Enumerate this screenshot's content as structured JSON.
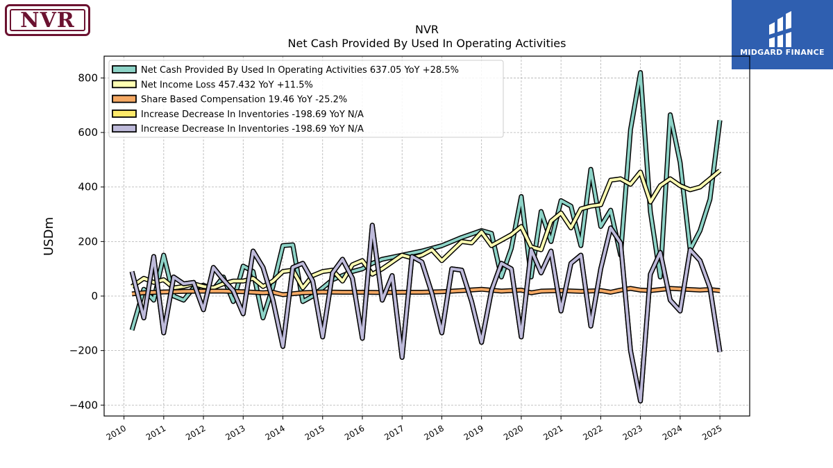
{
  "logos": {
    "left_text": "NVR",
    "right_text": "MIDGARD FINANCE",
    "left_color": "#6b1230",
    "right_bg": "#2f5fb0"
  },
  "chart_data": {
    "type": "line",
    "title": "NVR",
    "subtitle": "Net Cash Provided By Used In Operating Activities",
    "ylabel": "USDm",
    "xlabel": "",
    "ylim": [
      -440,
      880
    ],
    "xlim": [
      2009.5,
      2025.75
    ],
    "yticks": [
      -400,
      -200,
      0,
      200,
      400,
      600,
      800
    ],
    "ytick_labels": [
      "−400",
      "−200",
      "0",
      "200",
      "400",
      "600",
      "800"
    ],
    "xticks": [
      2010,
      2011,
      2012,
      2013,
      2014,
      2015,
      2016,
      2017,
      2018,
      2019,
      2020,
      2021,
      2022,
      2023,
      2024,
      2025
    ],
    "xtick_labels": [
      "2010",
      "2011",
      "2012",
      "2013",
      "2014",
      "2015",
      "2016",
      "2017",
      "2018",
      "2019",
      "2020",
      "2021",
      "2022",
      "2023",
      "2024",
      "2025"
    ],
    "grid": true,
    "legend_position": "top-left",
    "series": [
      {
        "name": "Net Cash Provided By Used In Operating Activities  637.05 YoY +28.5%",
        "color": "#8dd3c7",
        "points": [
          [
            2010.2,
            -125
          ],
          [
            2010.5,
            25
          ],
          [
            2010.75,
            -15
          ],
          [
            2011.0,
            150
          ],
          [
            2011.25,
            0
          ],
          [
            2011.5,
            -15
          ],
          [
            2011.75,
            30
          ],
          [
            2012.0,
            40
          ],
          [
            2012.25,
            25
          ],
          [
            2012.5,
            70
          ],
          [
            2012.75,
            -20
          ],
          [
            2013.0,
            110
          ],
          [
            2013.25,
            90
          ],
          [
            2013.5,
            -80
          ],
          [
            2013.75,
            35
          ],
          [
            2014.0,
            185
          ],
          [
            2014.25,
            188
          ],
          [
            2014.5,
            -20
          ],
          [
            2014.75,
            0
          ],
          [
            2015.0,
            30
          ],
          [
            2015.25,
            60
          ],
          [
            2015.5,
            75
          ],
          [
            2015.75,
            90
          ],
          [
            2016.0,
            100
          ],
          [
            2016.25,
            120
          ],
          [
            2016.5,
            135
          ],
          [
            2017.0,
            150
          ],
          [
            2017.5,
            165
          ],
          [
            2018.0,
            185
          ],
          [
            2018.5,
            215
          ],
          [
            2019.0,
            240
          ],
          [
            2019.25,
            230
          ],
          [
            2019.5,
            70
          ],
          [
            2019.75,
            175
          ],
          [
            2020.0,
            365
          ],
          [
            2020.25,
            70
          ],
          [
            2020.5,
            310
          ],
          [
            2020.75,
            200
          ],
          [
            2021.0,
            350
          ],
          [
            2021.25,
            330
          ],
          [
            2021.5,
            185
          ],
          [
            2021.75,
            465
          ],
          [
            2022.0,
            255
          ],
          [
            2022.25,
            315
          ],
          [
            2022.5,
            150
          ],
          [
            2022.75,
            610
          ],
          [
            2023.0,
            820
          ],
          [
            2023.25,
            310
          ],
          [
            2023.5,
            70
          ],
          [
            2023.75,
            665
          ],
          [
            2024.0,
            490
          ],
          [
            2024.25,
            170
          ],
          [
            2024.5,
            240
          ],
          [
            2024.75,
            355
          ],
          [
            2025.0,
            645
          ]
        ]
      },
      {
        "name": "Net Income Loss  457.432 YoY +11.5%",
        "color": "#ffffb3",
        "points": [
          [
            2010.2,
            35
          ],
          [
            2010.5,
            65
          ],
          [
            2010.75,
            50
          ],
          [
            2011.0,
            60
          ],
          [
            2011.25,
            30
          ],
          [
            2011.5,
            35
          ],
          [
            2011.75,
            45
          ],
          [
            2012.0,
            35
          ],
          [
            2012.25,
            30
          ],
          [
            2012.5,
            45
          ],
          [
            2012.75,
            55
          ],
          [
            2013.0,
            55
          ],
          [
            2013.25,
            65
          ],
          [
            2013.5,
            35
          ],
          [
            2013.75,
            55
          ],
          [
            2014.0,
            90
          ],
          [
            2014.25,
            95
          ],
          [
            2014.5,
            30
          ],
          [
            2014.75,
            75
          ],
          [
            2015.0,
            90
          ],
          [
            2015.25,
            95
          ],
          [
            2015.5,
            55
          ],
          [
            2015.75,
            115
          ],
          [
            2016.0,
            130
          ],
          [
            2016.25,
            80
          ],
          [
            2016.5,
            100
          ],
          [
            2016.75,
            125
          ],
          [
            2017.0,
            150
          ],
          [
            2017.25,
            140
          ],
          [
            2017.5,
            150
          ],
          [
            2017.75,
            170
          ],
          [
            2018.0,
            130
          ],
          [
            2018.25,
            165
          ],
          [
            2018.5,
            200
          ],
          [
            2018.75,
            195
          ],
          [
            2019.0,
            235
          ],
          [
            2019.25,
            185
          ],
          [
            2019.5,
            205
          ],
          [
            2019.75,
            225
          ],
          [
            2020.0,
            255
          ],
          [
            2020.25,
            180
          ],
          [
            2020.5,
            170
          ],
          [
            2020.75,
            275
          ],
          [
            2021.0,
            305
          ],
          [
            2021.25,
            250
          ],
          [
            2021.5,
            320
          ],
          [
            2021.75,
            330
          ],
          [
            2022.0,
            335
          ],
          [
            2022.25,
            425
          ],
          [
            2022.5,
            430
          ],
          [
            2022.75,
            410
          ],
          [
            2023.0,
            455
          ],
          [
            2023.25,
            345
          ],
          [
            2023.5,
            405
          ],
          [
            2023.75,
            430
          ],
          [
            2024.0,
            405
          ],
          [
            2024.25,
            390
          ],
          [
            2024.5,
            400
          ],
          [
            2024.75,
            430
          ],
          [
            2025.0,
            460
          ]
        ]
      },
      {
        "name": "Share Based Compensation  19.46 YoY -25.2%",
        "color": "#f5a964",
        "points": [
          [
            2010.2,
            8
          ],
          [
            2010.5,
            12
          ],
          [
            2011.0,
            15
          ],
          [
            2011.5,
            17
          ],
          [
            2012.0,
            18
          ],
          [
            2012.5,
            18
          ],
          [
            2013.0,
            16
          ],
          [
            2013.5,
            12
          ],
          [
            2013.75,
            14
          ],
          [
            2014.0,
            5
          ],
          [
            2014.5,
            12
          ],
          [
            2015.0,
            15
          ],
          [
            2015.5,
            14
          ],
          [
            2016.0,
            14
          ],
          [
            2016.5,
            13
          ],
          [
            2017.0,
            14
          ],
          [
            2017.5,
            14
          ],
          [
            2018.0,
            16
          ],
          [
            2018.5,
            20
          ],
          [
            2019.0,
            25
          ],
          [
            2019.5,
            18
          ],
          [
            2020.0,
            22
          ],
          [
            2020.25,
            12
          ],
          [
            2020.5,
            18
          ],
          [
            2021.0,
            20
          ],
          [
            2021.5,
            17
          ],
          [
            2022.0,
            20
          ],
          [
            2022.25,
            14
          ],
          [
            2022.5,
            22
          ],
          [
            2022.75,
            28
          ],
          [
            2023.0,
            22
          ],
          [
            2023.25,
            20
          ],
          [
            2023.5,
            24
          ],
          [
            2023.75,
            28
          ],
          [
            2024.0,
            26
          ],
          [
            2024.25,
            24
          ],
          [
            2024.5,
            22
          ],
          [
            2024.75,
            24
          ],
          [
            2025.0,
            20
          ]
        ]
      },
      {
        "name": "Increase Decrease In Inventories  -198.69 YoY N/A",
        "color": "#fde96a",
        "points": [
          [
            2010.2,
            90
          ],
          [
            2010.5,
            -80
          ],
          [
            2010.75,
            145
          ],
          [
            2011.0,
            -135
          ],
          [
            2011.25,
            70
          ],
          [
            2011.5,
            45
          ],
          [
            2011.75,
            50
          ],
          [
            2012.0,
            -50
          ],
          [
            2012.25,
            105
          ],
          [
            2012.5,
            60
          ],
          [
            2012.75,
            20
          ],
          [
            2013.0,
            -65
          ],
          [
            2013.25,
            165
          ],
          [
            2013.5,
            105
          ],
          [
            2013.75,
            -15
          ],
          [
            2014.0,
            -185
          ],
          [
            2014.25,
            105
          ],
          [
            2014.5,
            120
          ],
          [
            2014.75,
            55
          ],
          [
            2015.0,
            -150
          ],
          [
            2015.25,
            85
          ],
          [
            2015.5,
            135
          ],
          [
            2015.75,
            65
          ],
          [
            2016.0,
            -155
          ],
          [
            2016.25,
            260
          ],
          [
            2016.5,
            -15
          ],
          [
            2016.75,
            75
          ],
          [
            2017.0,
            -225
          ],
          [
            2017.25,
            145
          ],
          [
            2017.5,
            125
          ],
          [
            2017.75,
            10
          ],
          [
            2018.0,
            -135
          ],
          [
            2018.25,
            100
          ],
          [
            2018.5,
            95
          ],
          [
            2018.75,
            -20
          ],
          [
            2019.0,
            -170
          ],
          [
            2019.25,
            20
          ],
          [
            2019.5,
            120
          ],
          [
            2019.75,
            100
          ],
          [
            2020.0,
            -150
          ],
          [
            2020.25,
            170
          ],
          [
            2020.5,
            85
          ],
          [
            2020.75,
            165
          ],
          [
            2021.0,
            -55
          ],
          [
            2021.25,
            120
          ],
          [
            2021.5,
            150
          ],
          [
            2021.75,
            -110
          ],
          [
            2022.0,
            100
          ],
          [
            2022.25,
            250
          ],
          [
            2022.5,
            195
          ],
          [
            2022.75,
            -200
          ],
          [
            2023.0,
            -385
          ],
          [
            2023.25,
            80
          ],
          [
            2023.5,
            160
          ],
          [
            2023.75,
            -15
          ],
          [
            2024.0,
            -55
          ],
          [
            2024.25,
            170
          ],
          [
            2024.5,
            130
          ],
          [
            2024.75,
            30
          ],
          [
            2025.0,
            -205
          ]
        ]
      },
      {
        "name": "Increase Decrease In Inventories  -198.69 YoY N/A",
        "color": "#bebada",
        "points": [
          [
            2010.2,
            90
          ],
          [
            2010.5,
            -80
          ],
          [
            2010.75,
            145
          ],
          [
            2011.0,
            -135
          ],
          [
            2011.25,
            70
          ],
          [
            2011.5,
            45
          ],
          [
            2011.75,
            50
          ],
          [
            2012.0,
            -50
          ],
          [
            2012.25,
            105
          ],
          [
            2012.5,
            60
          ],
          [
            2012.75,
            20
          ],
          [
            2013.0,
            -65
          ],
          [
            2013.25,
            165
          ],
          [
            2013.5,
            105
          ],
          [
            2013.75,
            -15
          ],
          [
            2014.0,
            -185
          ],
          [
            2014.25,
            105
          ],
          [
            2014.5,
            120
          ],
          [
            2014.75,
            55
          ],
          [
            2015.0,
            -150
          ],
          [
            2015.25,
            85
          ],
          [
            2015.5,
            135
          ],
          [
            2015.75,
            65
          ],
          [
            2016.0,
            -155
          ],
          [
            2016.25,
            260
          ],
          [
            2016.5,
            -15
          ],
          [
            2016.75,
            75
          ],
          [
            2017.0,
            -225
          ],
          [
            2017.25,
            145
          ],
          [
            2017.5,
            125
          ],
          [
            2017.75,
            10
          ],
          [
            2018.0,
            -135
          ],
          [
            2018.25,
            100
          ],
          [
            2018.5,
            95
          ],
          [
            2018.75,
            -20
          ],
          [
            2019.0,
            -170
          ],
          [
            2019.25,
            20
          ],
          [
            2019.5,
            120
          ],
          [
            2019.75,
            100
          ],
          [
            2020.0,
            -150
          ],
          [
            2020.25,
            170
          ],
          [
            2020.5,
            85
          ],
          [
            2020.75,
            165
          ],
          [
            2021.0,
            -55
          ],
          [
            2021.25,
            120
          ],
          [
            2021.5,
            150
          ],
          [
            2021.75,
            -110
          ],
          [
            2022.0,
            100
          ],
          [
            2022.25,
            250
          ],
          [
            2022.5,
            195
          ],
          [
            2022.75,
            -200
          ],
          [
            2023.0,
            -385
          ],
          [
            2023.25,
            80
          ],
          [
            2023.5,
            160
          ],
          [
            2023.75,
            -15
          ],
          [
            2024.0,
            -55
          ],
          [
            2024.25,
            170
          ],
          [
            2024.5,
            130
          ],
          [
            2024.75,
            30
          ],
          [
            2025.0,
            -205
          ]
        ]
      }
    ]
  }
}
